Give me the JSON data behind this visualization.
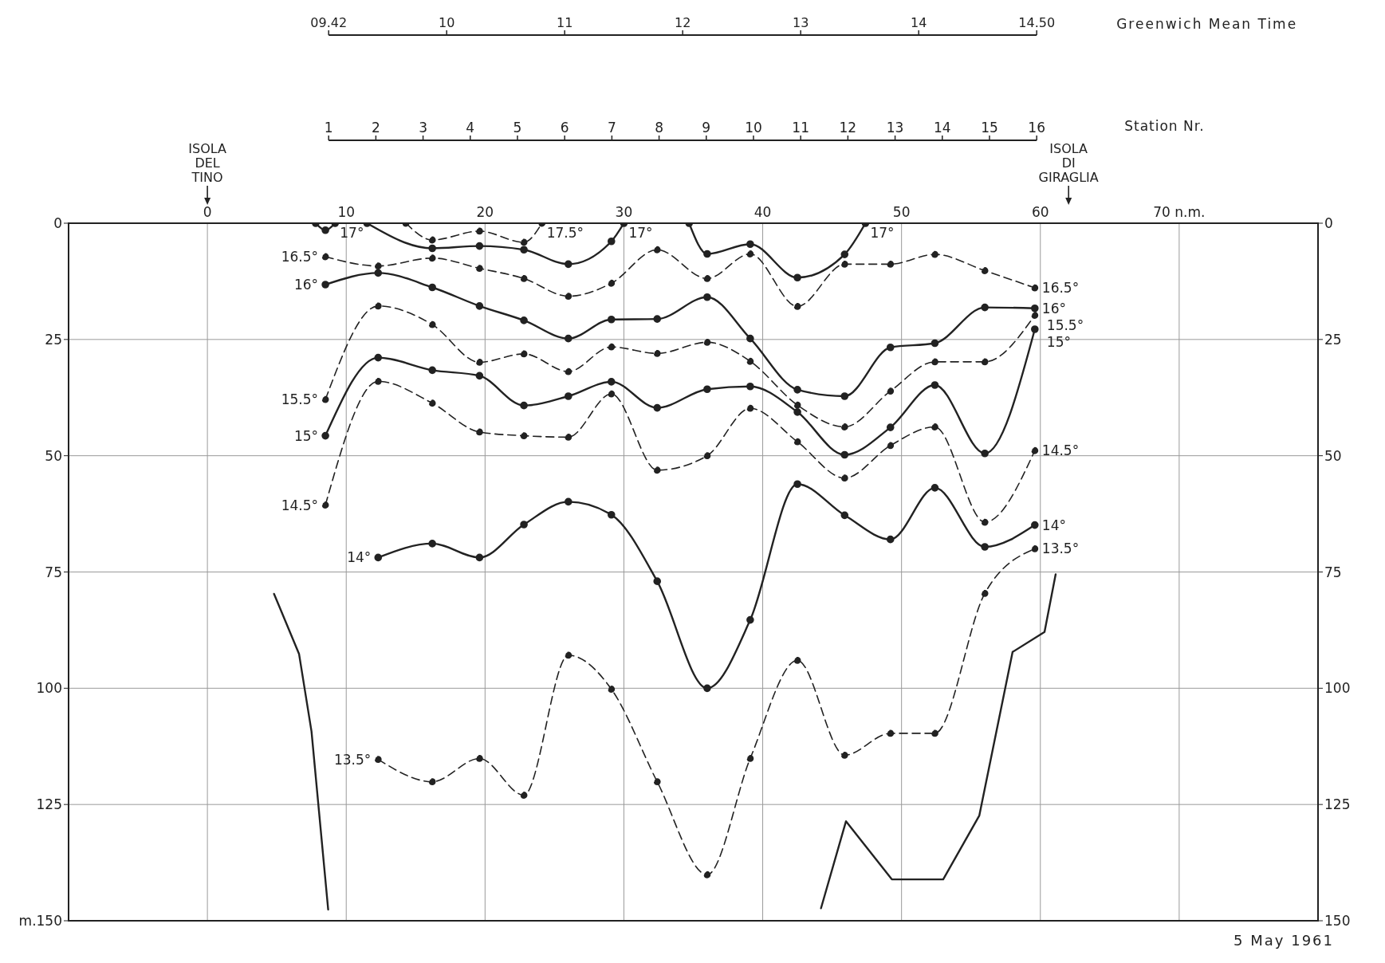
{
  "chart_data": {
    "type": "line",
    "xlim": [
      -10,
      80
    ],
    "xticks": [
      0,
      10,
      20,
      30,
      40,
      50,
      60,
      {
        "value": 70,
        "label": "70 n.m."
      }
    ],
    "ylim": [
      150,
      0
    ],
    "yticks": [
      0,
      25,
      50,
      75,
      100,
      125,
      {
        "value": 150,
        "label": "m.150"
      }
    ],
    "y2lim": [
      150,
      0
    ],
    "y2ticks": [
      0,
      25,
      50,
      75,
      100,
      125,
      150
    ],
    "x2label": "Station Nr.",
    "x2lim": [
      -4.51,
      21.96
    ],
    "x2ticks": [
      1,
      2,
      3,
      4,
      5,
      6,
      7,
      8,
      9,
      10,
      11,
      12,
      13,
      14,
      15,
      16
    ],
    "grid": true,
    "annotations": [
      "09.42",
      "10",
      "11",
      "12",
      "13",
      "14",
      "14.50",
      "Greenwich Mean Time",
      "ISOLA DEL TINO",
      "ISOLA DI GIRAGLIA",
      "5 May 1961"
    ],
    "series": [
      {
        "name": "17°",
        "color": "#222222",
        "line_style": "solid",
        "marker": "circle",
        "x": [
          7.8,
          8.5,
          9.2
        ],
        "values": [
          0,
          1.5,
          0
        ]
      },
      {
        "name": "17°",
        "color": "#222222",
        "line_style": "solid",
        "marker": "circle",
        "x": [
          11.5,
          16.2,
          19.6,
          22.8,
          26.0,
          29.1,
          30.0
        ],
        "values": [
          0,
          5.4,
          4.9,
          5.7,
          8.8,
          3.9,
          0
        ]
      },
      {
        "name": "17°",
        "color": "#222222",
        "line_style": "solid",
        "marker": "circle",
        "x": [
          34.7,
          36.0,
          39.1,
          42.5,
          45.9,
          47.4
        ],
        "values": [
          0,
          6.6,
          4.5,
          11.7,
          6.7,
          0
        ]
      },
      {
        "name": "17.5°",
        "color": "#222222",
        "line_style": "dashed",
        "marker": "circle",
        "x": [
          14.3,
          16.2,
          19.6,
          22.8,
          24.1
        ],
        "values": [
          0,
          3.6,
          1.7,
          4.1,
          0
        ]
      },
      {
        "name": "16.5°",
        "color": "#222222",
        "line_style": "dashed",
        "marker": "circle",
        "x": [
          8.5,
          12.3,
          16.2,
          19.6,
          22.8,
          26.0,
          29.1,
          32.4,
          36.0,
          39.1,
          42.5,
          45.9,
          49.2,
          52.4,
          56.0,
          59.6
        ],
        "values": [
          7.2,
          9.2,
          7.5,
          9.7,
          11.9,
          15.7,
          12.9,
          5.7,
          11.9,
          6.6,
          17.9,
          8.8,
          8.8,
          6.7,
          10.2,
          13.9
        ]
      },
      {
        "name": "16°",
        "color": "#222222",
        "line_style": "solid",
        "marker": "circle",
        "x": [
          8.5,
          12.3,
          16.2,
          19.6,
          22.8,
          26.0,
          29.1,
          32.4,
          36.0,
          39.1,
          42.5,
          45.9,
          49.2,
          52.4,
          56.0,
          59.6
        ],
        "values": [
          13.2,
          10.7,
          13.8,
          17.8,
          20.9,
          24.8,
          20.7,
          20.6,
          15.9,
          24.8,
          35.8,
          37.2,
          26.7,
          25.8,
          18.1,
          18.3
        ]
      },
      {
        "name": "15.5°",
        "color": "#222222",
        "line_style": "dashed",
        "marker": "circle",
        "x": [
          8.5,
          12.3,
          16.2,
          19.6,
          22.8,
          26.0,
          29.1,
          32.4,
          36.0,
          39.1,
          42.5,
          45.9,
          49.2,
          52.4,
          56.0,
          59.6
        ],
        "values": [
          37.9,
          17.8,
          21.8,
          29.9,
          28.1,
          31.9,
          26.6,
          28.0,
          25.6,
          29.7,
          39.1,
          43.8,
          36.1,
          29.8,
          29.8,
          19.8
        ]
      },
      {
        "name": "15°",
        "color": "#222222",
        "line_style": "solid",
        "marker": "circle",
        "x": [
          8.5,
          12.3,
          16.2,
          19.6,
          22.8,
          26.0,
          29.1,
          32.4,
          36.0,
          39.1,
          42.5,
          45.9,
          49.2,
          52.4,
          56.0,
          59.6
        ],
        "values": [
          45.7,
          28.9,
          31.6,
          32.8,
          39.2,
          37.2,
          34.1,
          39.7,
          35.7,
          35.1,
          40.6,
          49.8,
          43.9,
          34.8,
          49.5,
          22.8
        ]
      },
      {
        "name": "14.5°",
        "color": "#222222",
        "line_style": "dashed",
        "marker": "circle",
        "x": [
          8.5,
          12.3,
          16.2,
          19.6,
          22.8,
          26.0,
          29.1,
          32.4,
          36.0,
          39.1,
          42.5,
          45.9,
          49.2,
          52.4,
          56.0,
          59.6
        ],
        "values": [
          60.6,
          34.0,
          38.7,
          44.9,
          45.7,
          46.0,
          36.7,
          53.1,
          50.0,
          39.8,
          47.0,
          54.8,
          47.8,
          43.8,
          64.3,
          48.9
        ]
      },
      {
        "name": "14°",
        "color": "#222222",
        "line_style": "solid",
        "marker": "circle",
        "x": [
          12.3,
          16.2,
          19.6,
          22.8,
          26.0,
          29.1,
          32.4,
          36.0,
          39.1,
          42.5,
          45.9,
          49.2,
          52.4,
          56.0,
          59.6
        ],
        "values": [
          71.9,
          68.9,
          71.9,
          64.8,
          59.9,
          62.7,
          77.0,
          100.0,
          85.3,
          56.1,
          62.8,
          68.0,
          56.9,
          69.6,
          64.9
        ]
      },
      {
        "name": "13.5°",
        "color": "#222222",
        "line_style": "dashed",
        "marker": "circle",
        "x": [
          12.3,
          16.2,
          19.6,
          22.8,
          26.0,
          29.1,
          32.4,
          36.0,
          39.1,
          42.5,
          45.9,
          49.2,
          52.4,
          56.0,
          59.6
        ],
        "values": [
          115.3,
          120.1,
          115.1,
          123.0,
          92.9,
          100.2,
          120.1,
          140.1,
          115.1,
          94.0,
          114.4,
          109.7,
          109.7,
          79.6,
          70.0
        ]
      },
      {
        "color": "#222222",
        "line_style": "solid",
        "marker": "none",
        "x": [
          4.8,
          6.6,
          7.5,
          8.7
        ],
        "values": [
          79.7,
          92.6,
          109.3,
          147.6
        ]
      },
      {
        "color": "#222222",
        "line_style": "solid",
        "marker": "none",
        "x": [
          44.2,
          46.0,
          49.3,
          53.0,
          55.6,
          58.0,
          60.3,
          61.1
        ],
        "values": [
          147.3,
          128.6,
          141.1,
          141.1,
          127.4,
          92.2,
          87.9,
          75.5
        ]
      }
    ]
  }
}
